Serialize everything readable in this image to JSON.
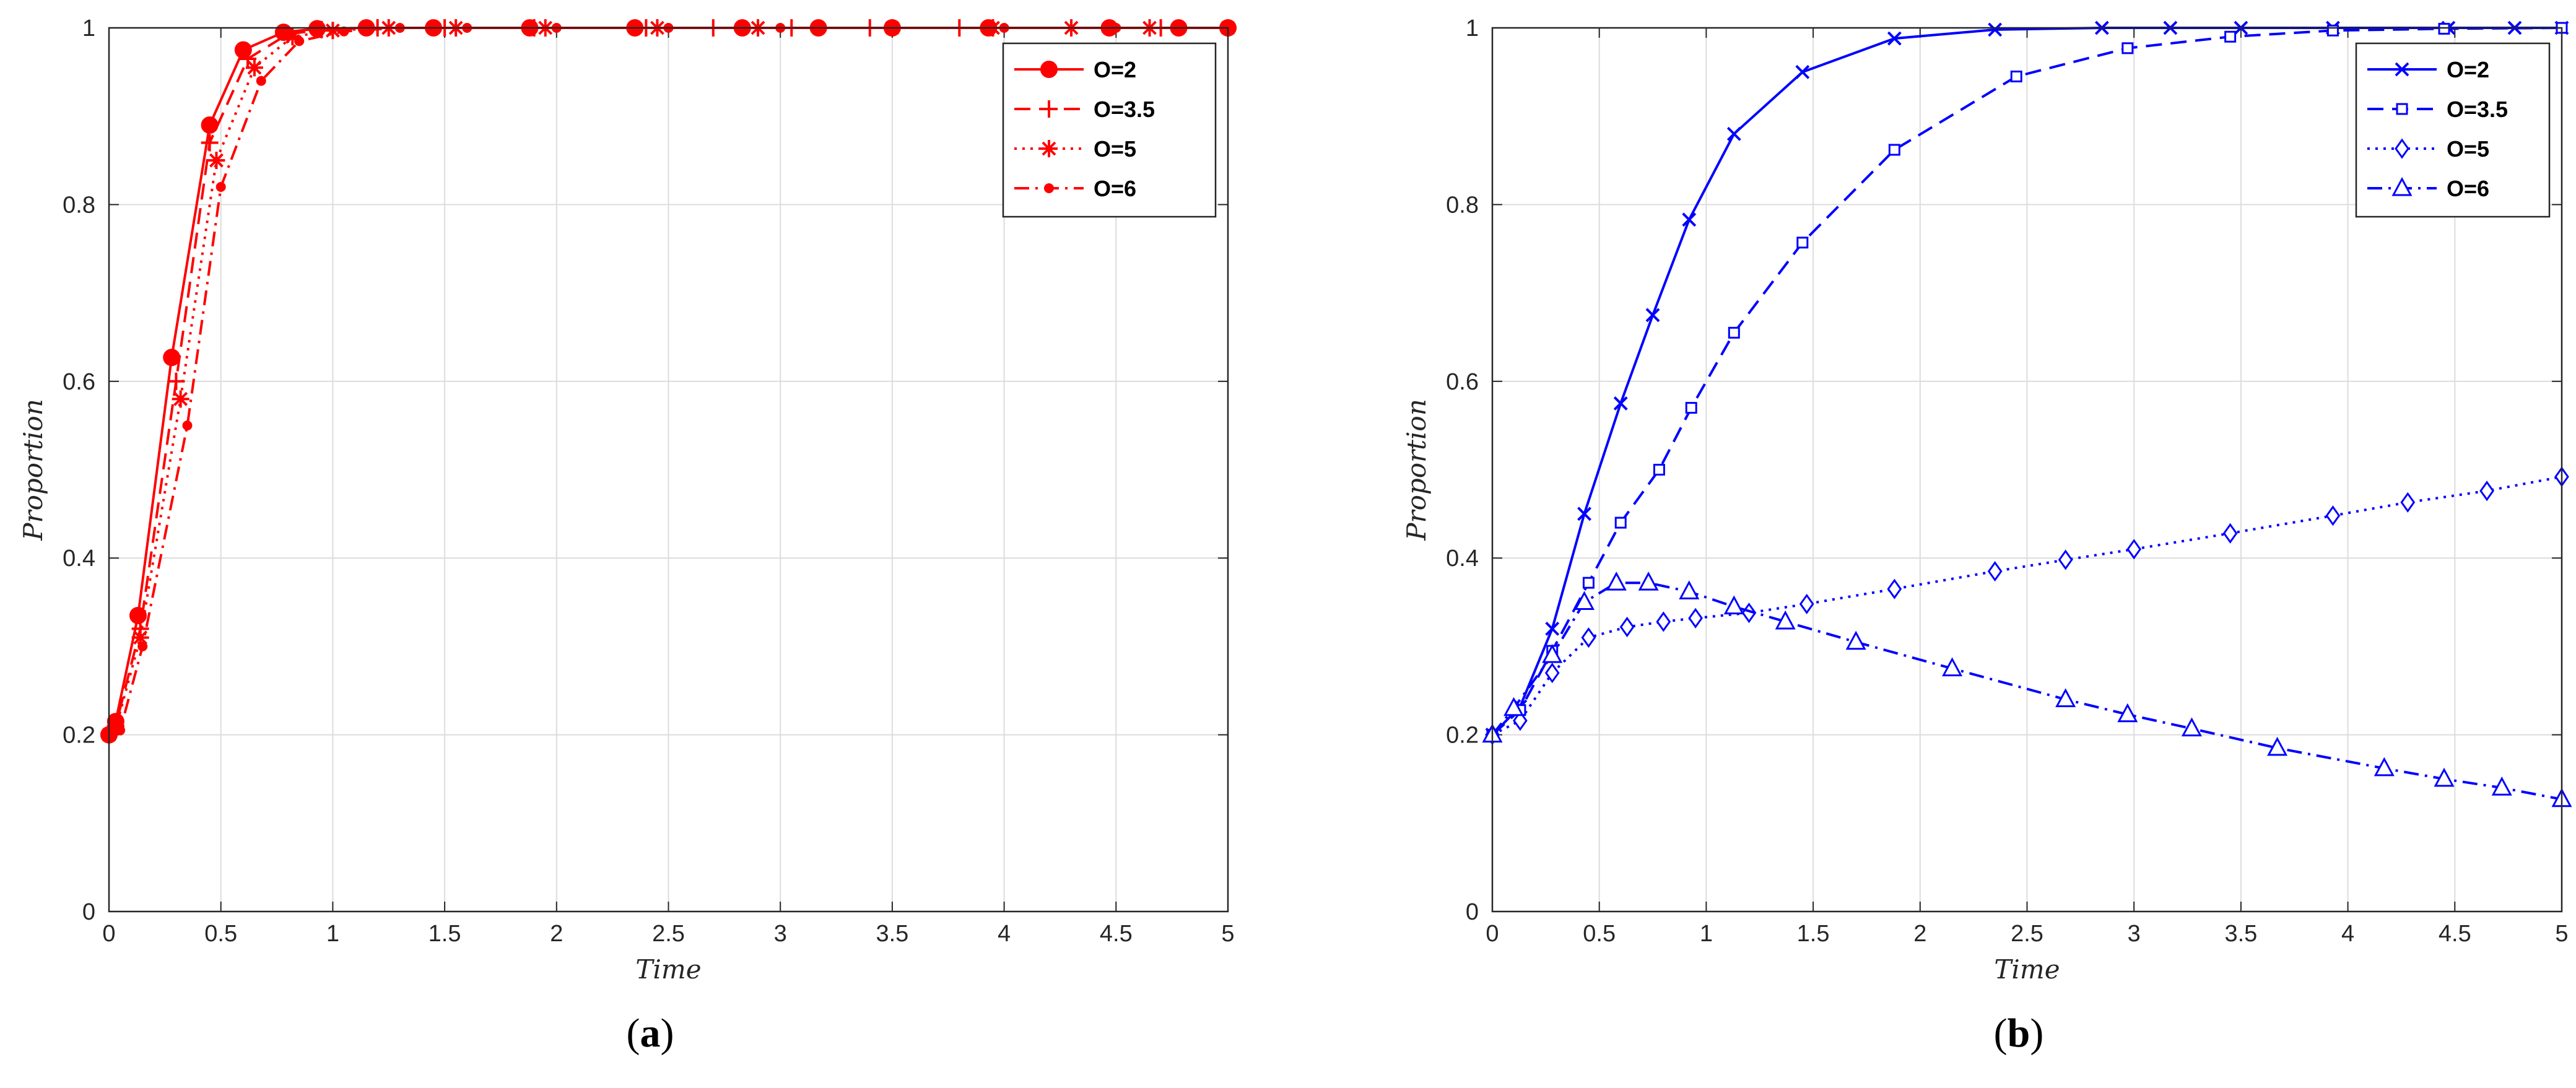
{
  "chart_data": [
    {
      "type": "line",
      "caption_prefix": "(",
      "caption_letter": "a",
      "caption_suffix": ")",
      "xlabel": "Time",
      "ylabel": "Proportion",
      "xlim": [
        0,
        5
      ],
      "ylim": [
        0,
        1
      ],
      "xticks": [
        "0",
        "0.5",
        "1",
        "1.5",
        "2",
        "2.5",
        "3",
        "3.5",
        "4",
        "4.5",
        "5"
      ],
      "yticks": [
        "0",
        "0.2",
        "0.4",
        "0.6",
        "0.8",
        "1"
      ],
      "grid": true,
      "legend_position": "top-right",
      "colors": {
        "line": "#ff0000"
      },
      "series": [
        {
          "name": "O=2",
          "dash": "solid",
          "marker": "filled-circle",
          "x": [
            0,
            0.03,
            0.13,
            0.28,
            0.45,
            0.6,
            0.78,
            0.93,
            1.15,
            1.45,
            1.88,
            2.35,
            2.83,
            3.17,
            3.5,
            3.93,
            4.47,
            4.78,
            5
          ],
          "y": [
            0.2,
            0.215,
            0.335,
            0.627,
            0.89,
            0.975,
            0.995,
            0.999,
            1,
            1,
            1,
            1,
            1,
            1,
            1,
            1,
            1,
            1,
            1
          ]
        },
        {
          "name": "O=3.5",
          "dash": "dashed",
          "marker": "plus",
          "x": [
            0,
            0.03,
            0.14,
            0.3,
            0.45,
            0.62,
            0.8,
            0.95,
            1.2,
            1.5,
            1.9,
            2.4,
            2.7,
            3.05,
            3.4,
            3.8,
            4.3,
            4.7,
            5
          ],
          "y": [
            0.2,
            0.21,
            0.32,
            0.6,
            0.87,
            0.965,
            0.993,
            0.998,
            1,
            1,
            1,
            1,
            1,
            1,
            1,
            1,
            1,
            1,
            1
          ]
        },
        {
          "name": "O=5",
          "dash": "dotted",
          "marker": "asterisk",
          "x": [
            0,
            0.03,
            0.14,
            0.32,
            0.48,
            0.65,
            0.82,
            1.0,
            1.25,
            1.55,
            1.95,
            2.45,
            2.9,
            3.5,
            3.95,
            4.3,
            4.65,
            5
          ],
          "y": [
            0.2,
            0.207,
            0.31,
            0.58,
            0.85,
            0.955,
            0.99,
            0.997,
            1,
            1,
            1,
            1,
            1,
            1,
            1,
            1,
            1,
            1
          ]
        },
        {
          "name": "O=6",
          "dash": "dashdot",
          "marker": "dot",
          "x": [
            0,
            0.05,
            0.15,
            0.35,
            0.5,
            0.68,
            0.85,
            1.05,
            1.3,
            1.6,
            2.0,
            2.5,
            3.0,
            3.5,
            4.0,
            4.5,
            5
          ],
          "y": [
            0.2,
            0.205,
            0.3,
            0.55,
            0.82,
            0.94,
            0.985,
            0.996,
            1,
            1,
            1,
            1,
            1,
            1,
            1,
            1,
            1
          ]
        }
      ]
    },
    {
      "type": "line",
      "caption_prefix": "(",
      "caption_letter": "b",
      "caption_suffix": ")",
      "xlabel": "Time",
      "ylabel": "Proportion",
      "xlim": [
        0,
        5
      ],
      "ylim": [
        0,
        1
      ],
      "xticks": [
        "0",
        "0.5",
        "1",
        "1.5",
        "2",
        "2.5",
        "3",
        "3.5",
        "4",
        "4.5",
        "5"
      ],
      "yticks": [
        "0",
        "0.2",
        "0.4",
        "0.6",
        "0.8",
        "1"
      ],
      "grid": true,
      "legend_position": "top-right",
      "colors": {
        "line": "#0000ff"
      },
      "series": [
        {
          "name": "O=2",
          "dash": "solid",
          "marker": "x",
          "x": [
            0,
            0.13,
            0.28,
            0.43,
            0.6,
            0.75,
            0.92,
            1.13,
            1.45,
            1.88,
            2.35,
            2.85,
            3.17,
            3.5,
            3.93,
            4.47,
            4.78,
            5
          ],
          "y": [
            0.2,
            0.232,
            0.32,
            0.45,
            0.575,
            0.675,
            0.783,
            0.88,
            0.95,
            0.988,
            0.998,
            1,
            1,
            1,
            1,
            1,
            1,
            1
          ]
        },
        {
          "name": "O=3.5",
          "dash": "dashed",
          "marker": "square",
          "x": [
            0,
            0.13,
            0.28,
            0.45,
            0.6,
            0.78,
            0.93,
            1.13,
            1.45,
            1.88,
            2.45,
            2.97,
            3.45,
            3.93,
            4.45,
            5
          ],
          "y": [
            0.2,
            0.228,
            0.295,
            0.372,
            0.44,
            0.5,
            0.57,
            0.655,
            0.757,
            0.862,
            0.945,
            0.977,
            0.99,
            0.997,
            0.999,
            1
          ]
        },
        {
          "name": "O=5",
          "dash": "dotted",
          "marker": "diamond",
          "x": [
            0,
            0.13,
            0.28,
            0.45,
            0.63,
            0.8,
            0.95,
            1.2,
            1.47,
            1.88,
            2.35,
            2.68,
            3.0,
            3.45,
            3.93,
            4.28,
            4.65,
            5
          ],
          "y": [
            0.2,
            0.216,
            0.27,
            0.31,
            0.322,
            0.328,
            0.332,
            0.338,
            0.348,
            0.365,
            0.385,
            0.398,
            0.41,
            0.428,
            0.448,
            0.463,
            0.476,
            0.492
          ]
        },
        {
          "name": "O=6",
          "dash": "dashdot",
          "marker": "triangle",
          "x": [
            0,
            0.1,
            0.28,
            0.43,
            0.58,
            0.73,
            0.92,
            1.13,
            1.37,
            1.7,
            2.15,
            2.68,
            2.97,
            3.27,
            3.67,
            4.17,
            4.45,
            4.72,
            5
          ],
          "y": [
            0.2,
            0.23,
            0.29,
            0.35,
            0.372,
            0.372,
            0.362,
            0.345,
            0.328,
            0.305,
            0.275,
            0.24,
            0.223,
            0.207,
            0.185,
            0.162,
            0.15,
            0.14,
            0.127
          ]
        }
      ]
    }
  ]
}
